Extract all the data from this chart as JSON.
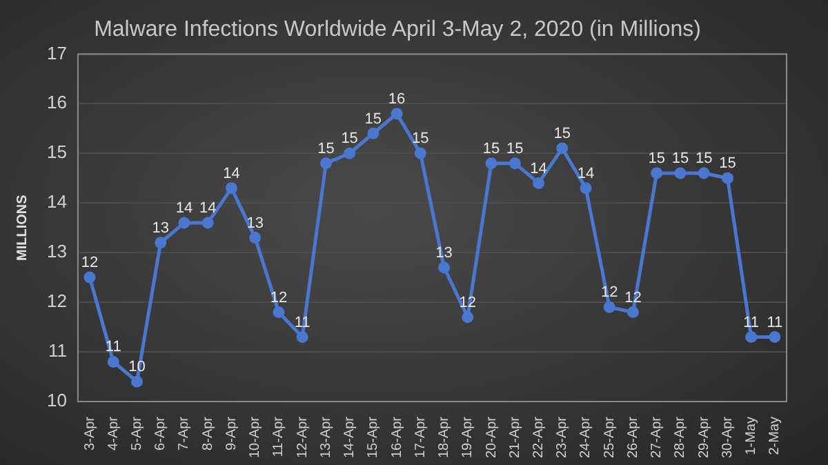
{
  "chart_data": {
    "type": "line",
    "title": "Malware Infections Worldwide April 3-May 2, 2020 (in Millions)",
    "ylabel": "MILLIONS",
    "categories": [
      "3-Apr",
      "4-Apr",
      "5-Apr",
      "6-Apr",
      "7-Apr",
      "8-Apr",
      "9-Apr",
      "10-Apr",
      "11-Apr",
      "12-Apr",
      "13-Apr",
      "14-Apr",
      "15-Apr",
      "16-Apr",
      "17-Apr",
      "18-Apr",
      "19-Apr",
      "20-Apr",
      "21-Apr",
      "22-Apr",
      "23-Apr",
      "24-Apr",
      "25-Apr",
      "26-Apr",
      "27-Apr",
      "28-Apr",
      "29-Apr",
      "30-Apr",
      "1-May",
      "2-May"
    ],
    "series": [
      {
        "color": "#4a78d0",
        "values": [
          12.5,
          10.8,
          10.4,
          13.2,
          13.6,
          13.6,
          14.3,
          13.3,
          11.8,
          11.3,
          14.8,
          15.0,
          15.4,
          15.8,
          15.0,
          12.7,
          11.7,
          14.8,
          14.8,
          14.4,
          15.1,
          14.3,
          11.9,
          11.8,
          14.6,
          14.6,
          14.6,
          14.5,
          11.3,
          11.3
        ],
        "value_labels": [
          "12",
          "11",
          "10",
          "13",
          "14",
          "14",
          "14",
          "13",
          "12",
          "11",
          "15",
          "15",
          "15",
          "16",
          "15",
          "13",
          "12",
          "15",
          "15",
          "14",
          "15",
          "14",
          "12",
          "12",
          "15",
          "15",
          "15",
          "15",
          "11",
          "11"
        ]
      }
    ],
    "ylim": [
      10,
      17
    ],
    "yticks": [
      10,
      11,
      12,
      13,
      14,
      15,
      16,
      17
    ],
    "grid": "y",
    "marker": "circle",
    "line_style": "solid",
    "legend": false
  }
}
